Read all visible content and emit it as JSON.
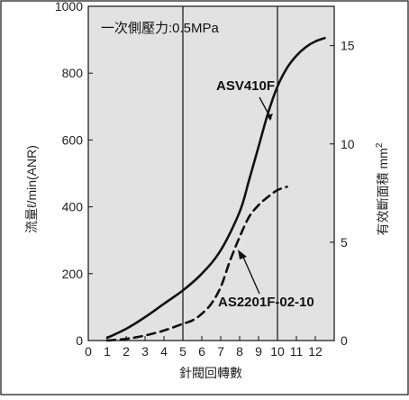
{
  "chart_data": {
    "type": "line",
    "title": "",
    "condition_label": "一次側壓力:0.5MPa",
    "xlabel": "針閥回轉數",
    "ylabel_left": "流量ℓ/min(ANR)",
    "ylabel_right": "有效斷面積 mm",
    "ylabel_right_sup": "2",
    "xlim": [
      0,
      13
    ],
    "ylim_left": [
      0,
      1000
    ],
    "ylim_right": [
      0,
      17
    ],
    "x_ticks": [
      0,
      1,
      2,
      3,
      4,
      5,
      6,
      7,
      8,
      9,
      10,
      11,
      12
    ],
    "y_ticks_left": [
      0,
      200,
      400,
      600,
      800,
      1000
    ],
    "y_ticks_right": [
      0,
      5,
      10,
      15
    ],
    "grid": "vertical lines at x = 5 and x = 10",
    "colors": {
      "plot_background": "#e2e2e2",
      "line": "#111111",
      "frame": "#111111"
    },
    "series": [
      {
        "name": "ASV410F",
        "style": "solid",
        "x": [
          1,
          2,
          3,
          4,
          5,
          6,
          7,
          8,
          8.5,
          9,
          9.5,
          10,
          10.5,
          11,
          11.5,
          12,
          12.5
        ],
        "y": [
          8,
          35,
          70,
          110,
          150,
          200,
          270,
          385,
          480,
          580,
          680,
          760,
          815,
          852,
          878,
          895,
          905
        ]
      },
      {
        "name": "AS2201F-02-10",
        "style": "dashed",
        "x": [
          1,
          2,
          3,
          4,
          5,
          5.5,
          6,
          6.5,
          7,
          7.5,
          8,
          8.5,
          9,
          9.5,
          10,
          10.5
        ],
        "y": [
          0,
          5,
          15,
          30,
          50,
          60,
          80,
          110,
          160,
          240,
          310,
          370,
          405,
          430,
          450,
          460
        ]
      }
    ],
    "annotations": [
      {
        "text": "ASV410F",
        "series": "ASV410F"
      },
      {
        "text": "AS2201F-02-10",
        "series": "AS2201F-02-10"
      }
    ]
  }
}
